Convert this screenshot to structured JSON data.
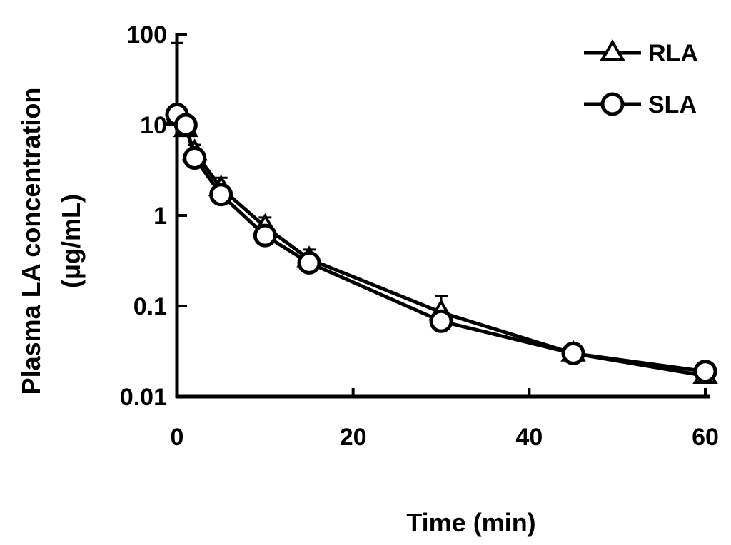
{
  "chart_data": {
    "type": "line",
    "title": "",
    "xlabel": "Time (min)",
    "ylabel": "Plasma LA concentration",
    "ylabel_unit": "(μg/mL)",
    "yscale": "log",
    "xlim": [
      0,
      60
    ],
    "ylim": [
      0.01,
      100
    ],
    "x_ticks": [
      0,
      20,
      40,
      60
    ],
    "x_tick_labels": [
      "0",
      "20",
      "40",
      "60"
    ],
    "y_ticks": [
      0.01,
      0.1,
      1,
      10,
      100
    ],
    "y_tick_labels": [
      "0.01",
      "0.1",
      "1",
      "10",
      "100"
    ],
    "grid": false,
    "legend_position": "top-right",
    "series": [
      {
        "name": "RLA",
        "marker": "triangle",
        "x": [
          0,
          1,
          2,
          5,
          10,
          15,
          30,
          45,
          60
        ],
        "values": [
          12,
          9,
          5,
          2.0,
          0.75,
          0.33,
          0.085,
          0.03,
          0.017
        ],
        "error_upper": [
          80,
          11,
          6,
          2.6,
          0.95,
          0.42,
          0.13,
          0.038,
          0.021
        ]
      },
      {
        "name": "SLA",
        "marker": "circle",
        "x": [
          0,
          1,
          2,
          5,
          10,
          15,
          30,
          45,
          60
        ],
        "values": [
          13,
          10,
          4.3,
          1.7,
          0.6,
          0.3,
          0.068,
          0.03,
          0.019
        ],
        "error_upper": [
          15,
          11,
          5,
          2.0,
          0.7,
          0.35,
          0.08,
          0.034,
          0.021
        ]
      }
    ],
    "colors": {
      "line": "#000000",
      "marker_fill": "#ffffff",
      "background": "#ffffff"
    }
  }
}
